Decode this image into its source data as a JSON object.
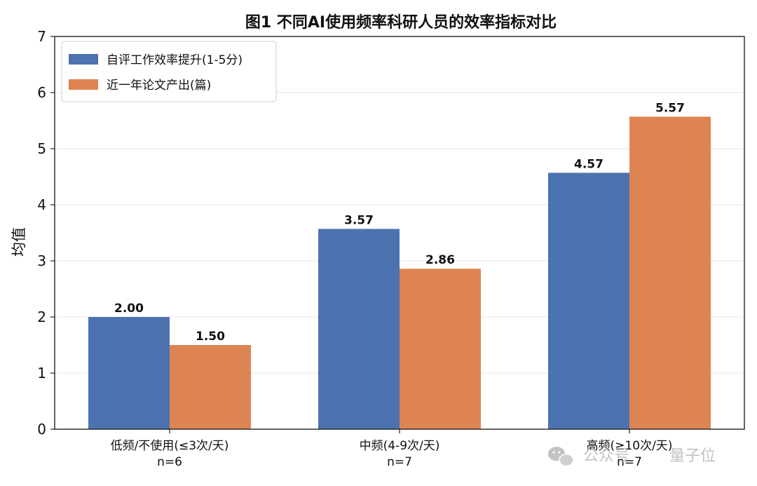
{
  "chart_data": {
    "type": "bar",
    "title": "图1  不同AI使用频率科研人员的效率指标对比",
    "ylabel": "均值",
    "xlabel": "",
    "ylim": [
      0,
      7
    ],
    "yticks": [
      "0",
      "1",
      "2",
      "3",
      "4",
      "5",
      "6",
      "7"
    ],
    "grid": "horizontal",
    "legend_position": "top-left",
    "categories": [
      {
        "label": "低频/不使用(≤3次/天)",
        "n": "n=6"
      },
      {
        "label": "中频(4-9次/天)",
        "n": "n=7"
      },
      {
        "label": "高频(≥10次/天)",
        "n": "n=7"
      }
    ],
    "series": [
      {
        "name": "自评工作效率提升(1-5分)",
        "color": "#4c72b0",
        "values": [
          2.0,
          3.57,
          4.57
        ],
        "labels": [
          "2.00",
          "3.57",
          "4.57"
        ]
      },
      {
        "name": "近一年论文产出(篇)",
        "color": "#dd8452",
        "values": [
          1.5,
          2.86,
          5.57
        ],
        "labels": [
          "1.50",
          "2.86",
          "5.57"
        ]
      }
    ]
  },
  "watermark": {
    "icon": "wechat-icon",
    "text_a": "公众号",
    "text_b": "量子位"
  }
}
